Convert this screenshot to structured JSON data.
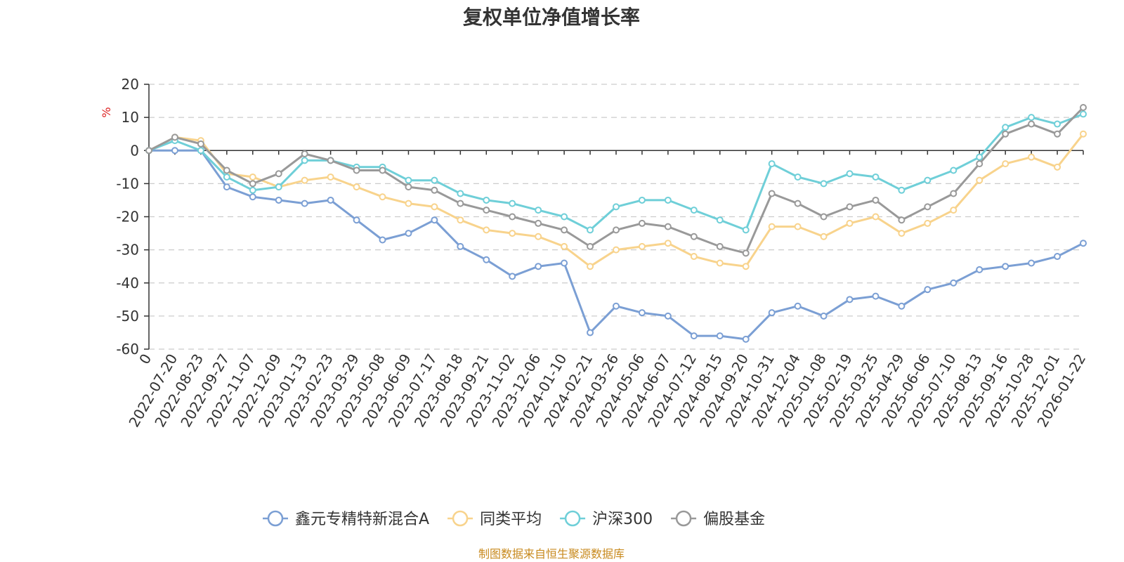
{
  "chart_data": {
    "type": "line",
    "title": "复权单位净值增长率",
    "ylabel": "%",
    "xlabel": "",
    "ylim": [
      -60,
      20
    ],
    "yticks": [
      20,
      10,
      0,
      -10,
      -20,
      -30,
      -40,
      -50,
      -60
    ],
    "categories": [
      "0",
      "2022-07-20",
      "2022-08-23",
      "2022-09-27",
      "2022-11-07",
      "2022-12-09",
      "2023-01-13",
      "2023-02-23",
      "2023-03-29",
      "2023-05-08",
      "2023-06-09",
      "2023-07-17",
      "2023-08-18",
      "2023-09-21",
      "2023-11-02",
      "2023-12-06",
      "2024-01-10",
      "2024-02-21",
      "2024-03-26",
      "2024-05-06",
      "2024-06-07",
      "2024-07-12",
      "2024-08-15",
      "2024-09-20",
      "2024-10-31",
      "2024-12-04",
      "2025-01-08",
      "2025-02-19",
      "2025-03-25",
      "2025-04-29",
      "2025-06-06",
      "2025-07-10",
      "2025-08-13",
      "2025-09-16",
      "2025-10-28",
      "2025-12-01",
      "2026-01-22"
    ],
    "series": [
      {
        "name": "鑫元专精特新混合A",
        "color": "#7b9fd4",
        "values": [
          0,
          0,
          0,
          -11,
          -14,
          -15,
          -16,
          -15,
          -21,
          -27,
          -25,
          -21,
          -29,
          -33,
          -38,
          -35,
          -34,
          -55,
          -47,
          -49,
          -50,
          -56,
          -56,
          -57,
          -49,
          -47,
          -50,
          -45,
          -44,
          -47,
          -42,
          -40,
          -36,
          -35,
          -34,
          -32,
          -28
        ]
      },
      {
        "name": "同类平均",
        "color": "#f8d38c",
        "values": [
          0,
          4,
          3,
          -7,
          -8,
          -11,
          -9,
          -8,
          -11,
          -14,
          -16,
          -17,
          -21,
          -24,
          -25,
          -26,
          -29,
          -35,
          -30,
          -29,
          -28,
          -32,
          -34,
          -35,
          -23,
          -23,
          -26,
          -22,
          -20,
          -25,
          -22,
          -18,
          -9,
          -4,
          -2,
          -5,
          5
        ]
      },
      {
        "name": "沪深300",
        "color": "#6fcfd8",
        "values": [
          0,
          3,
          0,
          -8,
          -12,
          -11,
          -3,
          -3,
          -5,
          -5,
          -9,
          -9,
          -13,
          -15,
          -16,
          -18,
          -20,
          -24,
          -17,
          -15,
          -15,
          -18,
          -21,
          -24,
          -4,
          -8,
          -10,
          -7,
          -8,
          -12,
          -9,
          -6,
          -2,
          7,
          10,
          8,
          11
        ]
      },
      {
        "name": "偏股基金",
        "color": "#999999",
        "values": [
          0,
          4,
          2,
          -6,
          -10,
          -7,
          -1,
          -3,
          -6,
          -6,
          -11,
          -12,
          -16,
          -18,
          -20,
          -22,
          -24,
          -29,
          -24,
          -22,
          -23,
          -26,
          -29,
          -31,
          -13,
          -16,
          -20,
          -17,
          -15,
          -21,
          -17,
          -13,
          -4,
          5,
          8,
          5,
          13
        ]
      }
    ],
    "legend_position": "bottom-center",
    "grid": true
  },
  "footer": {
    "source": "制图数据来自恒生聚源数据库"
  }
}
